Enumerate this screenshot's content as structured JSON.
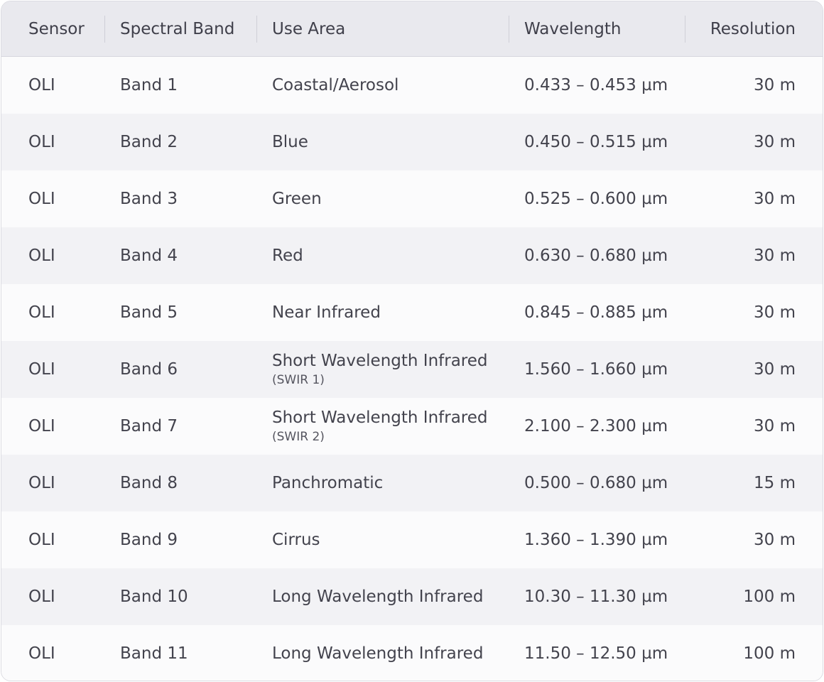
{
  "table": {
    "headers": {
      "sensor": "Sensor",
      "band": "Spectral Band",
      "use": "Use Area",
      "wavelength": "Wavelength",
      "resolution": "Resolution"
    },
    "rows": [
      {
        "sensor": "OLI",
        "band": "Band 1",
        "use": "Coastal/Aerosol",
        "use_sub": "",
        "wavelength": "0.433 – 0.453 µm",
        "resolution": "30 m"
      },
      {
        "sensor": "OLI",
        "band": "Band 2",
        "use": "Blue",
        "use_sub": "",
        "wavelength": "0.450 – 0.515 µm",
        "resolution": "30 m"
      },
      {
        "sensor": "OLI",
        "band": "Band 3",
        "use": "Green",
        "use_sub": "",
        "wavelength": "0.525 – 0.600 µm",
        "resolution": "30 m"
      },
      {
        "sensor": "OLI",
        "band": "Band 4",
        "use": "Red",
        "use_sub": "",
        "wavelength": "0.630 – 0.680 µm",
        "resolution": "30 m"
      },
      {
        "sensor": "OLI",
        "band": "Band 5",
        "use": "Near Infrared",
        "use_sub": "",
        "wavelength": "0.845 – 0.885 µm",
        "resolution": "30 m"
      },
      {
        "sensor": "OLI",
        "band": "Band 6",
        "use": "Short Wavelength Infrared",
        "use_sub": "(SWIR 1)",
        "wavelength": "1.560 – 1.660 µm",
        "resolution": "30 m"
      },
      {
        "sensor": "OLI",
        "band": "Band 7",
        "use": "Short Wavelength Infrared",
        "use_sub": "(SWIR 2)",
        "wavelength": "2.100 – 2.300 µm",
        "resolution": "30 m"
      },
      {
        "sensor": "OLI",
        "band": "Band 8",
        "use": "Panchromatic",
        "use_sub": "",
        "wavelength": "0.500 – 0.680 µm",
        "resolution": "15 m"
      },
      {
        "sensor": "OLI",
        "band": "Band 9",
        "use": "Cirrus",
        "use_sub": "",
        "wavelength": "1.360 – 1.390 µm",
        "resolution": "30 m"
      },
      {
        "sensor": "OLI",
        "band": "Band 10",
        "use": "Long Wavelength Infrared",
        "use_sub": "",
        "wavelength": "10.30 – 11.30 µm",
        "resolution": "100 m"
      },
      {
        "sensor": "OLI",
        "band": "Band 11",
        "use": "Long Wavelength Infrared",
        "use_sub": "",
        "wavelength": "11.50 – 12.50 µm",
        "resolution": "100 m"
      }
    ]
  }
}
